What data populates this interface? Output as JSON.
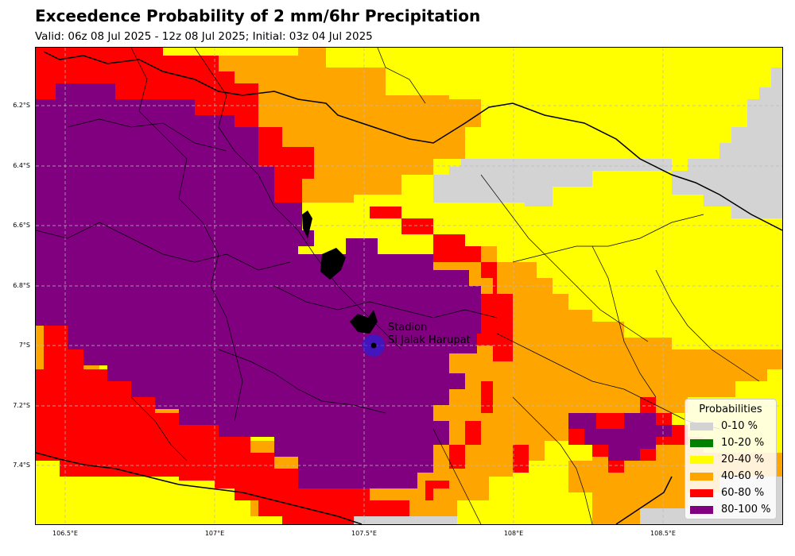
{
  "header": {
    "title": "Exceedence Probability of 2 mm/6hr Precipitation",
    "subtitle": "Valid: 06z 08 Jul 2025 - 12z 08 Jul 2025; Initial: 03z 04 Jul 2025"
  },
  "axes": {
    "lat_labels": [
      "6.2°S",
      "6.4°S",
      "6.6°S",
      "6.8°S",
      "7°S",
      "7.2°S",
      "7.4°S"
    ],
    "lon_labels": [
      "106.5°E",
      "107°E",
      "107.5°E",
      "108°E",
      "108.5°E"
    ],
    "grid": true
  },
  "station": {
    "name_line1": "Stadion",
    "name_line2": "Si Jalak Harupat",
    "marker_color": "#2222dd"
  },
  "legend": {
    "title": "Probabilities",
    "placement": "lower-right",
    "items": [
      {
        "label": "0-10 %",
        "color": "#d3d3d3"
      },
      {
        "label": "10-20 %",
        "color": "#008000"
      },
      {
        "label": "20-40 %",
        "color": "#ffff00"
      },
      {
        "label": "40-60 %",
        "color": "#ffa500"
      },
      {
        "label": "60-80 %",
        "color": "#ff0000"
      },
      {
        "label": "80-100 %",
        "color": "#800080"
      }
    ]
  },
  "colors": {
    "background": "#ffff00",
    "coastline": "#000000",
    "borders": "#000000",
    "gridline": "#bbbbbb"
  }
}
